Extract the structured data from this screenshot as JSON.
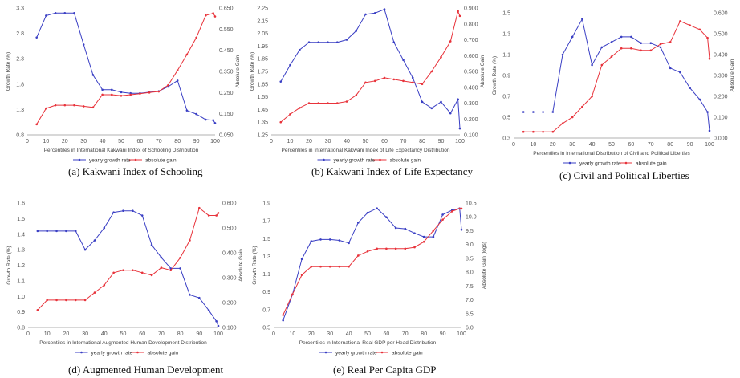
{
  "colors": {
    "growth": "#3a3fc4",
    "gain": "#e8333b",
    "axis": "#999999",
    "grid": "#eeeeee"
  },
  "chart_data": [
    {
      "type": "line",
      "id": "a",
      "caption": "(a) Kakwani Index of Schooling",
      "xlabel": "Percentiles in International Kakwani Index of Schooling Distribution",
      "ylabel_left": "Growth Rate (%)",
      "ylabel_right": "Absolute Gain",
      "xlim": [
        0,
        100
      ],
      "xticks": [
        0,
        10,
        20,
        30,
        40,
        50,
        60,
        70,
        80,
        90,
        100
      ],
      "ylim_left": [
        0.8,
        3.3
      ],
      "yticks_left": [
        "0.8",
        "1.3",
        "1.8",
        "2.3",
        "2.8",
        "3.3"
      ],
      "ylim_right": [
        0.05,
        0.65
      ],
      "yticks_right": [
        "0.050",
        "0.150",
        "0.250",
        "0.350",
        "0.450",
        "0.550",
        "0.650"
      ],
      "x": [
        5,
        10,
        15,
        20,
        25,
        30,
        35,
        40,
        45,
        50,
        55,
        60,
        65,
        70,
        75,
        80,
        85,
        90,
        95,
        99,
        100
      ],
      "series": [
        {
          "name": "yearly growth rate",
          "axis": "left",
          "values": [
            2.72,
            3.15,
            3.2,
            3.2,
            3.2,
            2.58,
            1.98,
            1.69,
            1.69,
            1.64,
            1.62,
            1.62,
            1.64,
            1.66,
            1.75,
            1.87,
            1.28,
            1.21,
            1.1,
            1.09,
            1.03
          ]
        },
        {
          "name": "absolute gain",
          "axis": "right",
          "values": [
            0.1,
            0.175,
            0.19,
            0.19,
            0.19,
            0.185,
            0.18,
            0.24,
            0.24,
            0.235,
            0.24,
            0.245,
            0.25,
            0.255,
            0.285,
            0.355,
            0.43,
            0.51,
            0.615,
            0.625,
            0.61
          ]
        }
      ]
    },
    {
      "type": "line",
      "id": "b",
      "caption": "(b) Kakwani Index of Life Expectancy",
      "xlabel": "Percentiles in International Kakwani Index of Life Expectancy Distribution",
      "ylabel_left": "Growth Rate (%)",
      "ylabel_right": "Absolute Gain",
      "xlim": [
        0,
        100
      ],
      "xticks": [
        0,
        10,
        20,
        30,
        40,
        50,
        60,
        70,
        80,
        90,
        100
      ],
      "ylim_left": [
        1.25,
        2.25
      ],
      "yticks_left": [
        "1.25",
        "1.35",
        "1.45",
        "1.55",
        "1.65",
        "1.75",
        "1.85",
        "1.95",
        "2.05",
        "2.15",
        "2.25"
      ],
      "ylim_right": [
        0.1,
        0.9
      ],
      "yticks_right": [
        "0.100",
        "0.200",
        "0.300",
        "0.400",
        "0.500",
        "0.600",
        "0.700",
        "0.800",
        "0.900"
      ],
      "x": [
        5,
        10,
        15,
        20,
        25,
        30,
        35,
        40,
        45,
        50,
        55,
        60,
        65,
        70,
        75,
        80,
        85,
        90,
        95,
        99,
        100
      ],
      "series": [
        {
          "name": "yearly growth rate",
          "axis": "left",
          "values": [
            1.67,
            1.8,
            1.92,
            1.98,
            1.98,
            1.98,
            1.98,
            2.0,
            2.07,
            2.2,
            2.21,
            2.24,
            1.98,
            1.84,
            1.7,
            1.51,
            1.46,
            1.51,
            1.42,
            1.53,
            1.3
          ]
        },
        {
          "name": "absolute gain",
          "axis": "right",
          "values": [
            0.18,
            0.23,
            0.27,
            0.3,
            0.3,
            0.3,
            0.3,
            0.31,
            0.35,
            0.43,
            0.44,
            0.46,
            0.45,
            0.44,
            0.43,
            0.42,
            0.5,
            0.59,
            0.69,
            0.88,
            0.85
          ]
        }
      ]
    },
    {
      "type": "line",
      "id": "c",
      "caption": "(c) Civil and Political Liberties",
      "xlabel": "Percentiles in International Distribution of Civil and Political Liberties",
      "ylabel_left": "Growth Rate (%)",
      "ylabel_right": "Absolute Gain",
      "xlim": [
        0,
        100
      ],
      "xticks": [
        0,
        10,
        20,
        30,
        40,
        50,
        60,
        70,
        80,
        90,
        100
      ],
      "ylim_left": [
        0.3,
        1.5
      ],
      "yticks_left": [
        "0.3",
        "0.5",
        "0.7",
        "0.9",
        "1.1",
        "1.3",
        "1.5"
      ],
      "ylim_right": [
        0.0,
        0.6
      ],
      "yticks_right": [
        "0.000",
        "0.100",
        "0.200",
        "0.300",
        "0.400",
        "0.500",
        "0.600"
      ],
      "x": [
        5,
        10,
        15,
        20,
        25,
        30,
        35,
        40,
        45,
        50,
        55,
        60,
        65,
        70,
        75,
        80,
        85,
        90,
        95,
        99,
        100
      ],
      "series": [
        {
          "name": "yearly growth rate",
          "axis": "left",
          "values": [
            0.55,
            0.55,
            0.55,
            0.55,
            1.1,
            1.27,
            1.44,
            1.0,
            1.17,
            1.22,
            1.27,
            1.27,
            1.21,
            1.21,
            1.17,
            0.97,
            0.93,
            0.78,
            0.67,
            0.55,
            0.37
          ]
        },
        {
          "name": "absolute gain",
          "axis": "right",
          "values": [
            0.03,
            0.03,
            0.03,
            0.03,
            0.07,
            0.1,
            0.15,
            0.2,
            0.35,
            0.39,
            0.43,
            0.43,
            0.42,
            0.42,
            0.45,
            0.46,
            0.56,
            0.54,
            0.52,
            0.48,
            0.38
          ]
        }
      ]
    },
    {
      "type": "line",
      "id": "d",
      "caption": "(d) Augmented Human Development",
      "xlabel": "Percentiles in International Augmented Human Development Distribution",
      "ylabel_left": "Growth Rate (%)",
      "ylabel_right": "Absolute Gain",
      "xlim": [
        0,
        100
      ],
      "xticks": [
        0,
        10,
        20,
        30,
        40,
        50,
        60,
        70,
        80,
        90,
        100
      ],
      "ylim_left": [
        0.8,
        1.6
      ],
      "yticks_left": [
        "0.8",
        "0.9",
        "1.0",
        "1.1",
        "1.2",
        "1.3",
        "1.4",
        "1.5",
        "1.6"
      ],
      "ylim_right": [
        0.1,
        0.6
      ],
      "yticks_right": [
        "0.100",
        "0.200",
        "0.300",
        "0.400",
        "0.500",
        "0.600"
      ],
      "x": [
        5,
        10,
        15,
        20,
        25,
        30,
        35,
        40,
        45,
        50,
        55,
        60,
        65,
        70,
        75,
        80,
        85,
        90,
        95,
        99,
        100
      ],
      "series": [
        {
          "name": "yearly growth rate",
          "axis": "left",
          "values": [
            1.42,
            1.42,
            1.42,
            1.42,
            1.42,
            1.3,
            1.36,
            1.44,
            1.54,
            1.55,
            1.55,
            1.52,
            1.33,
            1.25,
            1.18,
            1.18,
            1.01,
            0.99,
            0.91,
            0.84,
            0.81
          ]
        },
        {
          "name": "absolute gain",
          "axis": "right",
          "values": [
            0.17,
            0.21,
            0.21,
            0.21,
            0.21,
            0.21,
            0.24,
            0.27,
            0.32,
            0.33,
            0.33,
            0.32,
            0.31,
            0.34,
            0.33,
            0.38,
            0.45,
            0.58,
            0.55,
            0.55,
            0.56
          ]
        }
      ]
    },
    {
      "type": "line",
      "id": "e",
      "caption": "(e) Real Per Capita GDP",
      "xlabel": "Percentiles in International Real GDP per Head Distribution",
      "ylabel_left": "Growth Rate (%)",
      "ylabel_right": "Absolute Gain (logs)",
      "xlim": [
        0,
        100
      ],
      "xticks": [
        0,
        10,
        20,
        30,
        40,
        50,
        60,
        70,
        80,
        90,
        100
      ],
      "ylim_left": [
        0.5,
        1.9
      ],
      "yticks_left": [
        "0.5",
        "0.7",
        "0.9",
        "1.1",
        "1.3",
        "1.5",
        "1.7",
        "1.9"
      ],
      "ylim_right": [
        6.0,
        10.5
      ],
      "yticks_right": [
        "6.0",
        "6.5",
        "7.0",
        "7.5",
        "8.0",
        "8.5",
        "9.0",
        "9.5",
        "10.0",
        "10.5"
      ],
      "x": [
        5,
        10,
        15,
        20,
        25,
        30,
        35,
        40,
        45,
        50,
        55,
        60,
        65,
        70,
        75,
        80,
        85,
        90,
        95,
        99,
        100
      ],
      "series": [
        {
          "name": "yearly growth rate",
          "axis": "left",
          "values": [
            0.58,
            0.87,
            1.27,
            1.47,
            1.49,
            1.49,
            1.48,
            1.45,
            1.68,
            1.79,
            1.84,
            1.74,
            1.62,
            1.61,
            1.56,
            1.52,
            1.52,
            1.77,
            1.82,
            1.84,
            1.6
          ]
        },
        {
          "name": "absolute gain",
          "axis": "right",
          "values": [
            6.45,
            7.2,
            7.9,
            8.2,
            8.2,
            8.2,
            8.2,
            8.2,
            8.6,
            8.75,
            8.85,
            8.85,
            8.85,
            8.85,
            8.9,
            9.1,
            9.5,
            9.9,
            10.2,
            10.3,
            10.3
          ]
        }
      ]
    }
  ]
}
